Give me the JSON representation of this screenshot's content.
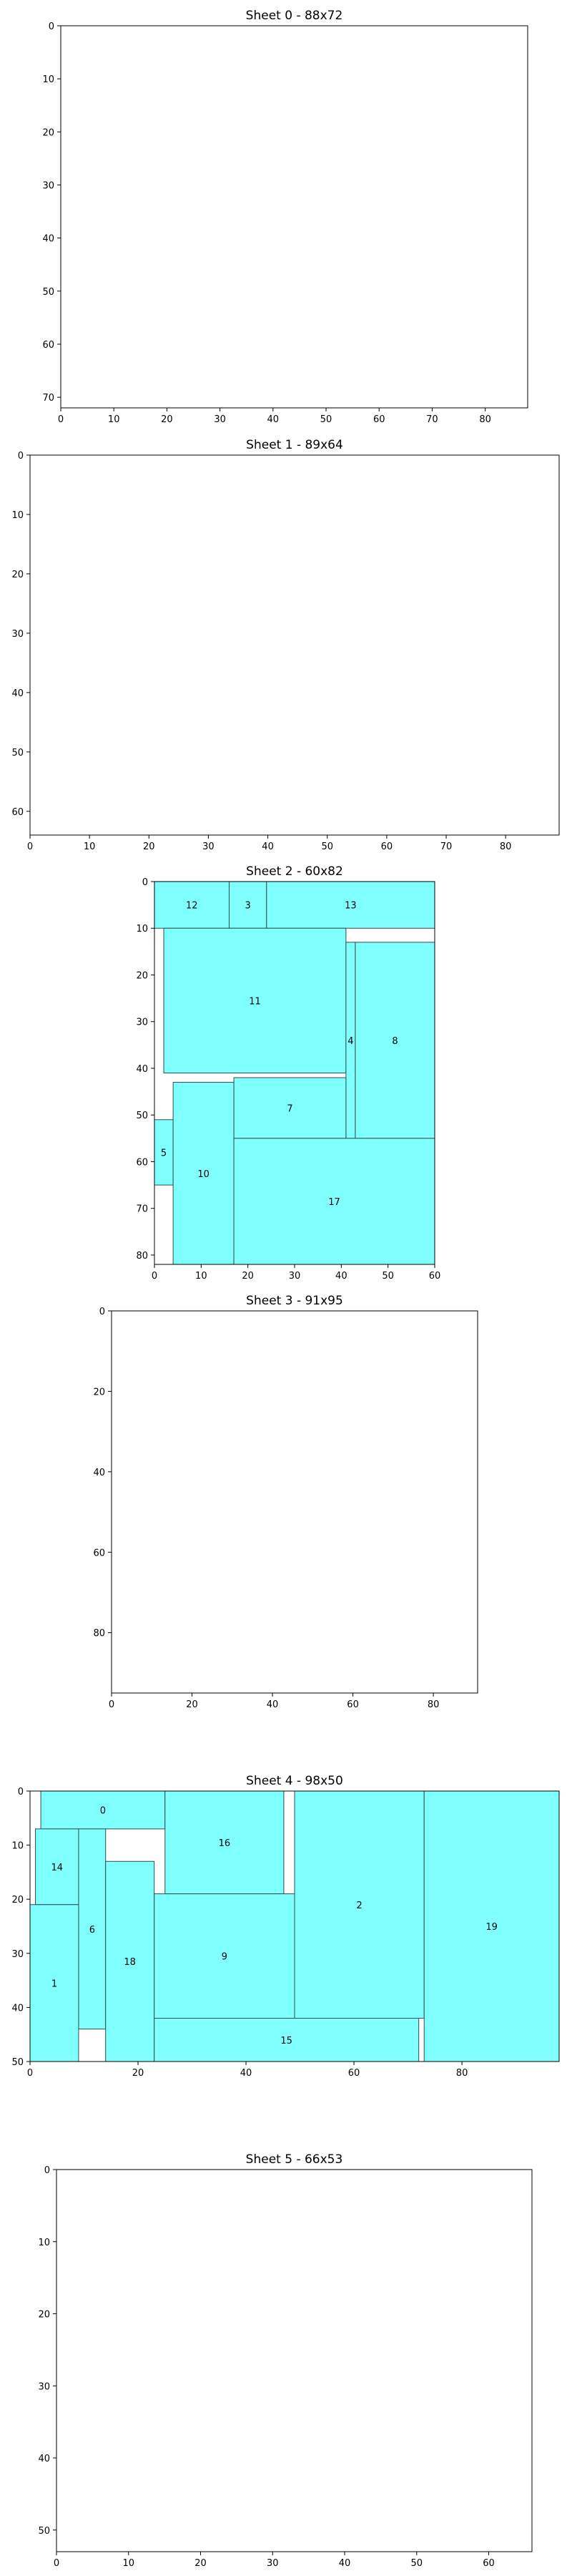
{
  "colors": {
    "piece_fill": "#80ffff",
    "piece_edge": "#2f4f4f",
    "frame": "#000000"
  },
  "chart_data": [
    {
      "type": "bar",
      "title": "Sheet 0 - 88x72",
      "xlim": [
        0,
        88
      ],
      "ylim": [
        72,
        0
      ],
      "xticks": [
        0,
        10,
        20,
        30,
        40,
        50,
        60,
        70,
        80
      ],
      "yticks": [
        0,
        10,
        20,
        30,
        40,
        50,
        60,
        70
      ],
      "pieces": []
    },
    {
      "type": "bar",
      "title": "Sheet 1 - 89x64",
      "xlim": [
        0,
        89
      ],
      "ylim": [
        64,
        0
      ],
      "xticks": [
        0,
        10,
        20,
        30,
        40,
        50,
        60,
        70,
        80
      ],
      "yticks": [
        0,
        10,
        20,
        30,
        40,
        50,
        60
      ],
      "pieces": []
    },
    {
      "type": "bar",
      "title": "Sheet 2 - 60x82",
      "xlim": [
        0,
        60
      ],
      "ylim": [
        82,
        0
      ],
      "xticks": [
        0,
        10,
        20,
        30,
        40,
        50,
        60
      ],
      "yticks": [
        0,
        10,
        20,
        30,
        40,
        50,
        60,
        70,
        80
      ],
      "pieces": [
        {
          "id": "12",
          "x": 0,
          "y": 0,
          "w": 16,
          "h": 10
        },
        {
          "id": "3",
          "x": 16,
          "y": 0,
          "w": 8,
          "h": 10
        },
        {
          "id": "13",
          "x": 24,
          "y": 0,
          "w": 36,
          "h": 10
        },
        {
          "id": "11",
          "x": 2,
          "y": 10,
          "w": 39,
          "h": 31
        },
        {
          "id": "4",
          "x": 41,
          "y": 13,
          "w": 2,
          "h": 42
        },
        {
          "id": "8",
          "x": 43,
          "y": 13,
          "w": 17,
          "h": 42
        },
        {
          "id": "7",
          "x": 17,
          "y": 42,
          "w": 24,
          "h": 13
        },
        {
          "id": "5",
          "x": 0,
          "y": 51,
          "w": 4,
          "h": 14
        },
        {
          "id": "10",
          "x": 4,
          "y": 43,
          "w": 13,
          "h": 39
        },
        {
          "id": "17",
          "x": 17,
          "y": 55,
          "w": 43,
          "h": 27
        }
      ]
    },
    {
      "type": "bar",
      "title": "Sheet 3 - 91x95",
      "xlim": [
        0,
        91
      ],
      "ylim": [
        95,
        0
      ],
      "xticks": [
        0,
        20,
        40,
        60,
        80
      ],
      "yticks": [
        0,
        20,
        40,
        60,
        80
      ],
      "pieces": []
    },
    {
      "type": "bar",
      "title": "Sheet 4 - 98x50",
      "xlim": [
        0,
        98
      ],
      "ylim": [
        50,
        0
      ],
      "xticks": [
        0,
        20,
        40,
        60,
        80
      ],
      "yticks": [
        0,
        10,
        20,
        30,
        40,
        50
      ],
      "pieces": [
        {
          "id": "0",
          "x": 2,
          "y": 0,
          "w": 23,
          "h": 7
        },
        {
          "id": "16",
          "x": 25,
          "y": 0,
          "w": 22,
          "h": 19
        },
        {
          "id": "2",
          "x": 49,
          "y": 0,
          "w": 24,
          "h": 42
        },
        {
          "id": "19",
          "x": 73,
          "y": 0,
          "w": 25,
          "h": 50
        },
        {
          "id": "14",
          "x": 1,
          "y": 7,
          "w": 8,
          "h": 14
        },
        {
          "id": "6",
          "x": 9,
          "y": 7,
          "w": 5,
          "h": 37
        },
        {
          "id": "18",
          "x": 14,
          "y": 13,
          "w": 9,
          "h": 37
        },
        {
          "id": "1",
          "x": 0,
          "y": 21,
          "w": 9,
          "h": 29
        },
        {
          "id": "9",
          "x": 23,
          "y": 19,
          "w": 26,
          "h": 23
        },
        {
          "id": "15",
          "x": 23,
          "y": 42,
          "w": 49,
          "h": 8
        }
      ]
    },
    {
      "type": "bar",
      "title": "Sheet 5 - 66x53",
      "xlim": [
        0,
        66
      ],
      "ylim": [
        53,
        0
      ],
      "xticks": [
        0,
        10,
        20,
        30,
        40,
        50,
        60
      ],
      "yticks": [
        0,
        10,
        20,
        30,
        40,
        50
      ],
      "pieces": []
    }
  ]
}
